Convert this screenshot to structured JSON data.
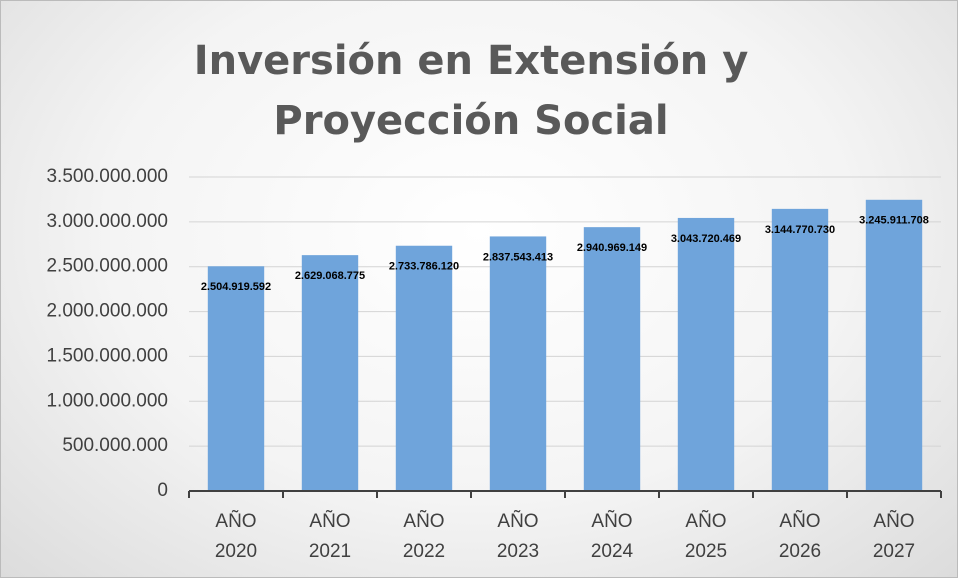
{
  "chart_data": {
    "type": "bar",
    "title": "Inversión en Extensión y Proyección Social",
    "categories": [
      "AÑO 2020",
      "AÑO 2021",
      "AÑO 2022",
      "AÑO 2023",
      "AÑO 2024",
      "AÑO 2025",
      "AÑO 2026",
      "AÑO 2027"
    ],
    "values": [
      2504919592,
      2629068775,
      2733786120,
      2837543413,
      2940969149,
      3043720469,
      3144770730,
      3245911708
    ],
    "value_labels": [
      "2.504.919.592",
      "2.629.068.775",
      "2.733.786.120",
      "2.837.543.413",
      "2.940.969.149",
      "3.043.720.469",
      "3.144.770.730",
      "3.245.911.708"
    ],
    "color": "#6fa4db",
    "ylim": [
      0,
      3500000000
    ],
    "yticks": [
      0,
      {
        "value": 500000000,
        "label": "500.000.000"
      },
      {
        "value": 1000000000,
        "label": "1.000.000.000"
      },
      {
        "value": 1500000000,
        "label": "1.500.000.000"
      },
      {
        "value": 2000000000,
        "label": "2.000.000.000"
      },
      {
        "value": 2500000000,
        "label": "2.500.000.000"
      },
      {
        "value": 3000000000,
        "label": "3.000.000.000"
      },
      {
        "value": 3500000000,
        "label": "3.500.000.000"
      }
    ],
    "grid": true
  }
}
